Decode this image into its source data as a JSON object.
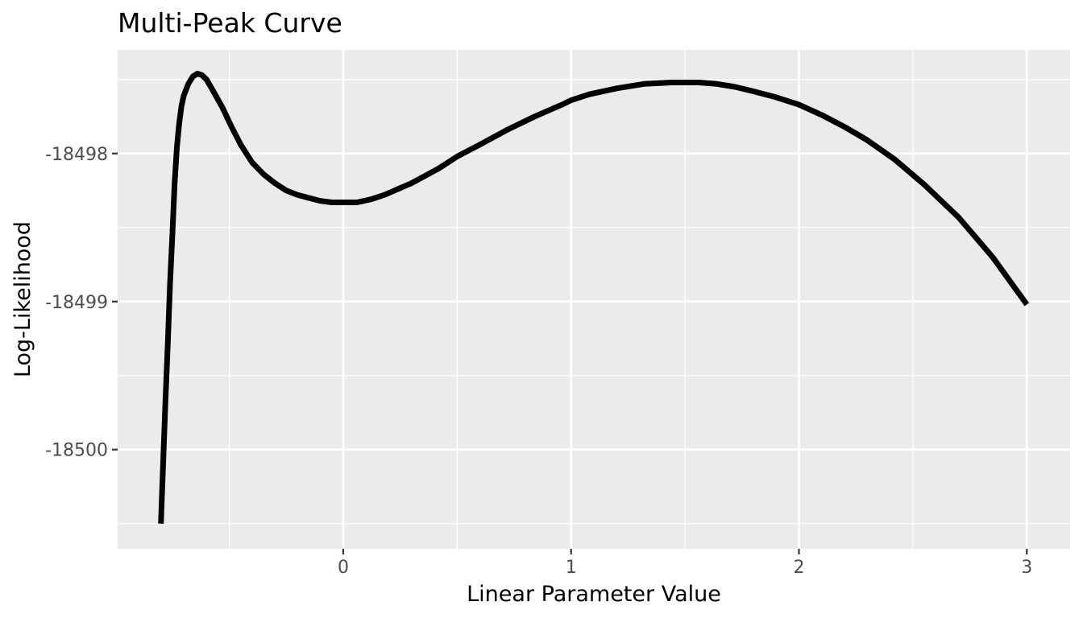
{
  "chart_data": {
    "type": "line",
    "title": "Multi-Peak Curve",
    "xlabel": "Linear Parameter Value",
    "ylabel": "Log-Likelihood",
    "xlim": [
      -0.99,
      3.19
    ],
    "ylim": [
      -18500.67,
      -18497.3
    ],
    "x_ticks": [
      0,
      1,
      2,
      3
    ],
    "x_tick_labels": [
      "0",
      "1",
      "2",
      "3"
    ],
    "x_minor": [
      -0.5,
      0.5,
      1.5,
      2.5
    ],
    "y_ticks": [
      -18500,
      -18499,
      -18498
    ],
    "y_tick_labels": [
      "-18500",
      "-18499",
      "-18498"
    ],
    "y_minor": [
      -18500.5,
      -18499.5,
      -18498.5,
      -18497.5
    ],
    "grid": true,
    "legend": "none",
    "background": "#ebebeb",
    "line_color": "#000000",
    "series": [
      {
        "x": [
          -0.8,
          -0.79,
          -0.78,
          -0.77,
          -0.76,
          -0.75,
          -0.74,
          -0.73,
          -0.72,
          -0.71,
          -0.7,
          -0.68,
          -0.66,
          -0.64,
          -0.62,
          -0.6,
          -0.57,
          -0.53,
          -0.49,
          -0.45,
          -0.4,
          -0.35,
          -0.3,
          -0.25,
          -0.2,
          -0.15,
          -0.1,
          -0.05,
          0,
          0.06,
          0.12,
          0.18,
          0.24,
          0.3,
          0.36,
          0.42,
          0.5,
          0.6,
          0.72,
          0.84,
          0.96,
          1,
          1.08,
          1.2,
          1.32,
          1.44,
          1.56,
          1.64,
          1.72,
          1.8,
          1.9,
          2.0,
          2.1,
          2.2,
          2.3,
          2.42,
          2.55,
          2.7,
          2.85,
          3.0
        ],
        "y": [
          -18500.5,
          -18500.07,
          -18499.66,
          -18499.29,
          -18498.88,
          -18498.55,
          -18498.2,
          -18497.96,
          -18497.8,
          -18497.68,
          -18497.61,
          -18497.53,
          -18497.48,
          -18497.46,
          -18497.47,
          -18497.5,
          -18497.58,
          -18497.69,
          -18497.82,
          -18497.94,
          -18498.06,
          -18498.14,
          -18498.2,
          -18498.25,
          -18498.28,
          -18498.3,
          -18498.32,
          -18498.33,
          -18498.33,
          -18498.33,
          -18498.31,
          -18498.28,
          -18498.24,
          -18498.2,
          -18498.15,
          -18498.1,
          -18498.02,
          -18497.94,
          -18497.84,
          -18497.75,
          -18497.67,
          -18497.64,
          -18497.6,
          -18497.56,
          -18497.53,
          -18497.52,
          -18497.52,
          -18497.53,
          -18497.55,
          -18497.58,
          -18497.62,
          -18497.67,
          -18497.74,
          -18497.82,
          -18497.91,
          -18498.04,
          -18498.21,
          -18498.43,
          -18498.7,
          -18499.02
        ]
      }
    ]
  }
}
